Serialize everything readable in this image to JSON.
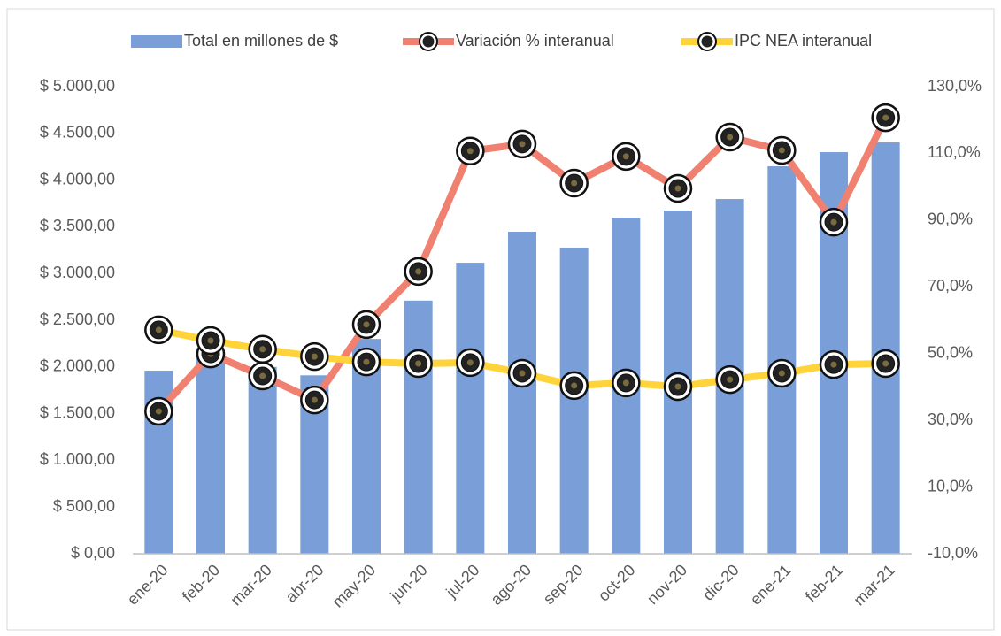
{
  "chart_data": {
    "type": "bar-line",
    "categories": [
      "ene-20",
      "feb-20",
      "mar-20",
      "abr-20",
      "may-20",
      "jun-20",
      "jul-20",
      "ago-20",
      "sep-20",
      "oct-20",
      "nov-20",
      "dic-20",
      "ene-21",
      "feb-21",
      "mar-21"
    ],
    "series": [
      {
        "name": "Total en millones de $",
        "type": "bar",
        "color": "#7a9fd8",
        "axis": "y",
        "values": [
          1960,
          2200,
          2000,
          1910,
          2300,
          2710,
          3115,
          3447,
          3277,
          3598,
          3674,
          3797,
          4148,
          4299,
          4403
        ]
      },
      {
        "name": "Variación % interanual",
        "type": "line",
        "color": "#f08070",
        "axis": "y2",
        "values": [
          32.7,
          49.9,
          43.3,
          36.1,
          58.7,
          74.6,
          110.7,
          112.8,
          101.1,
          109.1,
          99.5,
          114.9,
          110.9,
          89.4,
          120.7
        ]
      },
      {
        "name": "IPC NEA interanual",
        "type": "line",
        "color": "#ffd43a",
        "axis": "y2",
        "values": [
          57.1,
          53.9,
          51.3,
          49.1,
          47.5,
          47.0,
          47.3,
          44.1,
          40.4,
          41.2,
          40.1,
          42.2,
          44.1,
          46.7,
          47.0
        ]
      }
    ],
    "ylim": [
      0,
      5000
    ],
    "yticks": [
      {
        "value": 0,
        "label": "$ 0,00"
      },
      {
        "value": 500,
        "label": "$ 500,00"
      },
      {
        "value": 1000,
        "label": "$ 1.000,00"
      },
      {
        "value": 1500,
        "label": "$ 1.500,00"
      },
      {
        "value": 2000,
        "label": "$ 2.000,00"
      },
      {
        "value": 2500,
        "label": "$ 2.500,00"
      },
      {
        "value": 3000,
        "label": "$ 3.000,00"
      },
      {
        "value": 3500,
        "label": "$ 3.500,00"
      },
      {
        "value": 4000,
        "label": "$ 4.000,00"
      },
      {
        "value": 4500,
        "label": "$ 4.500,00"
      },
      {
        "value": 5000,
        "label": "$ 5.000,00"
      }
    ],
    "y2lim": [
      -10,
      130
    ],
    "y2ticks": [
      {
        "value": -10,
        "label": "-10,0%"
      },
      {
        "value": 10,
        "label": "10,0%"
      },
      {
        "value": 30,
        "label": "30,0%"
      },
      {
        "value": 50,
        "label": "50,0%"
      },
      {
        "value": 70,
        "label": "70,0%"
      },
      {
        "value": 90,
        "label": "90,0%"
      },
      {
        "value": 110,
        "label": "110,0%"
      },
      {
        "value": 130,
        "label": "130,0%"
      }
    ],
    "legend": "top"
  }
}
